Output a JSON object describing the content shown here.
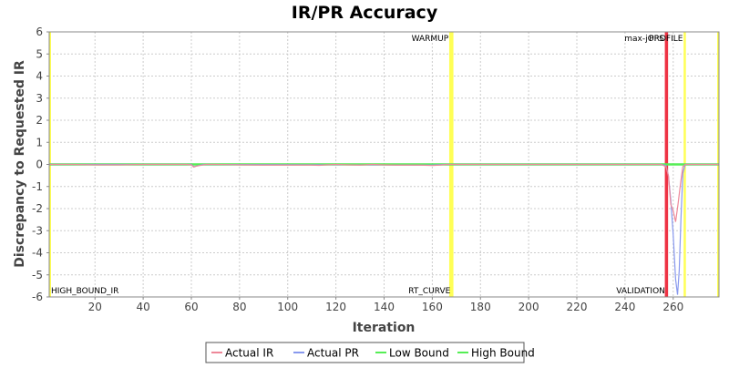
{
  "chart_data": {
    "type": "line",
    "title": "IR/PR Accuracy",
    "xlabel": "Iteration",
    "ylabel": "Discrepancy to Requested IR",
    "xlim": [
      1,
      279
    ],
    "ylim": [
      -6,
      6
    ],
    "x_ticks": [
      20,
      40,
      60,
      80,
      100,
      120,
      140,
      160,
      180,
      200,
      220,
      240,
      260
    ],
    "y_ticks": [
      -6,
      -5,
      -4,
      -3,
      -2,
      -1,
      0,
      1,
      2,
      3,
      4,
      5,
      6
    ],
    "grid": true,
    "legend_position": "bottom",
    "markers": [
      {
        "x": 167.5,
        "label": "WARMUP",
        "color": "#ffff55",
        "label_pos": "top"
      },
      {
        "x": 168.3,
        "label": "RT_CURVE",
        "color": "#ffff55",
        "label_pos": "bottom"
      },
      {
        "x": 257,
        "label": "max-jOPS",
        "color": "#ee3344",
        "label_pos": "top"
      },
      {
        "x": 257.4,
        "label": "VALIDATION",
        "color": "#ee3344",
        "label_pos": "bottom"
      },
      {
        "x": 264.8,
        "label": "PROFILE",
        "color": "#ffff55",
        "label_pos": "top"
      }
    ],
    "corner_labels": [
      {
        "label": "HIGH_BOUND_IR",
        "x": 1,
        "y": -6
      }
    ],
    "series": [
      {
        "name": "Actual IR",
        "color": "#ee8899",
        "points": [
          [
            1,
            0
          ],
          [
            10,
            0
          ],
          [
            20,
            -0.02
          ],
          [
            30,
            -0.02
          ],
          [
            40,
            0
          ],
          [
            50,
            0
          ],
          [
            58,
            0
          ],
          [
            60,
            -0.02
          ],
          [
            61,
            -0.12
          ],
          [
            62,
            -0.08
          ],
          [
            64,
            -0.04
          ],
          [
            66,
            0
          ],
          [
            70,
            0
          ],
          [
            80,
            -0.02
          ],
          [
            90,
            -0.03
          ],
          [
            100,
            -0.03
          ],
          [
            110,
            -0.03
          ],
          [
            113,
            -0.04
          ],
          [
            116,
            -0.02
          ],
          [
            120,
            0
          ],
          [
            125,
            -0.02
          ],
          [
            130,
            -0.03
          ],
          [
            135,
            0
          ],
          [
            140,
            -0.02
          ],
          [
            145,
            -0.03
          ],
          [
            150,
            -0.03
          ],
          [
            155,
            -0.03
          ],
          [
            160,
            -0.05
          ],
          [
            163,
            -0.03
          ],
          [
            166,
            0
          ],
          [
            170,
            0
          ],
          [
            200,
            0
          ],
          [
            230,
            0
          ],
          [
            255,
            0
          ],
          [
            257,
            -0.1
          ],
          [
            258,
            -0.5
          ],
          [
            259,
            -1.8
          ],
          [
            260,
            -2.1
          ],
          [
            261,
            -2.6
          ],
          [
            262,
            -1.8
          ],
          [
            263,
            -0.9
          ],
          [
            264,
            -0.1
          ],
          [
            265,
            0
          ],
          [
            270,
            0
          ],
          [
            279,
            0
          ]
        ]
      },
      {
        "name": "Actual PR",
        "color": "#8899ee",
        "points": [
          [
            1,
            0
          ],
          [
            60,
            0
          ],
          [
            61,
            -0.1
          ],
          [
            63,
            -0.05
          ],
          [
            65,
            0
          ],
          [
            160,
            -0.03
          ],
          [
            165,
            0
          ],
          [
            255,
            0
          ],
          [
            257,
            -0.05
          ],
          [
            258,
            -0.5
          ],
          [
            259,
            -1.6
          ],
          [
            260,
            -3.2
          ],
          [
            261,
            -5.2
          ],
          [
            261.8,
            -5.9
          ],
          [
            262.5,
            -4.8
          ],
          [
            263.2,
            -2.5
          ],
          [
            264,
            -0.4
          ],
          [
            265,
            0
          ],
          [
            279,
            0
          ]
        ]
      },
      {
        "name": "Low Bound",
        "color": "#55ee55",
        "points": [
          [
            1,
            0.01
          ],
          [
            279,
            0.01
          ]
        ]
      },
      {
        "name": "High Bound",
        "color": "#55ee55",
        "points": [
          [
            1,
            -0.01
          ],
          [
            279,
            -0.01
          ]
        ]
      }
    ]
  }
}
